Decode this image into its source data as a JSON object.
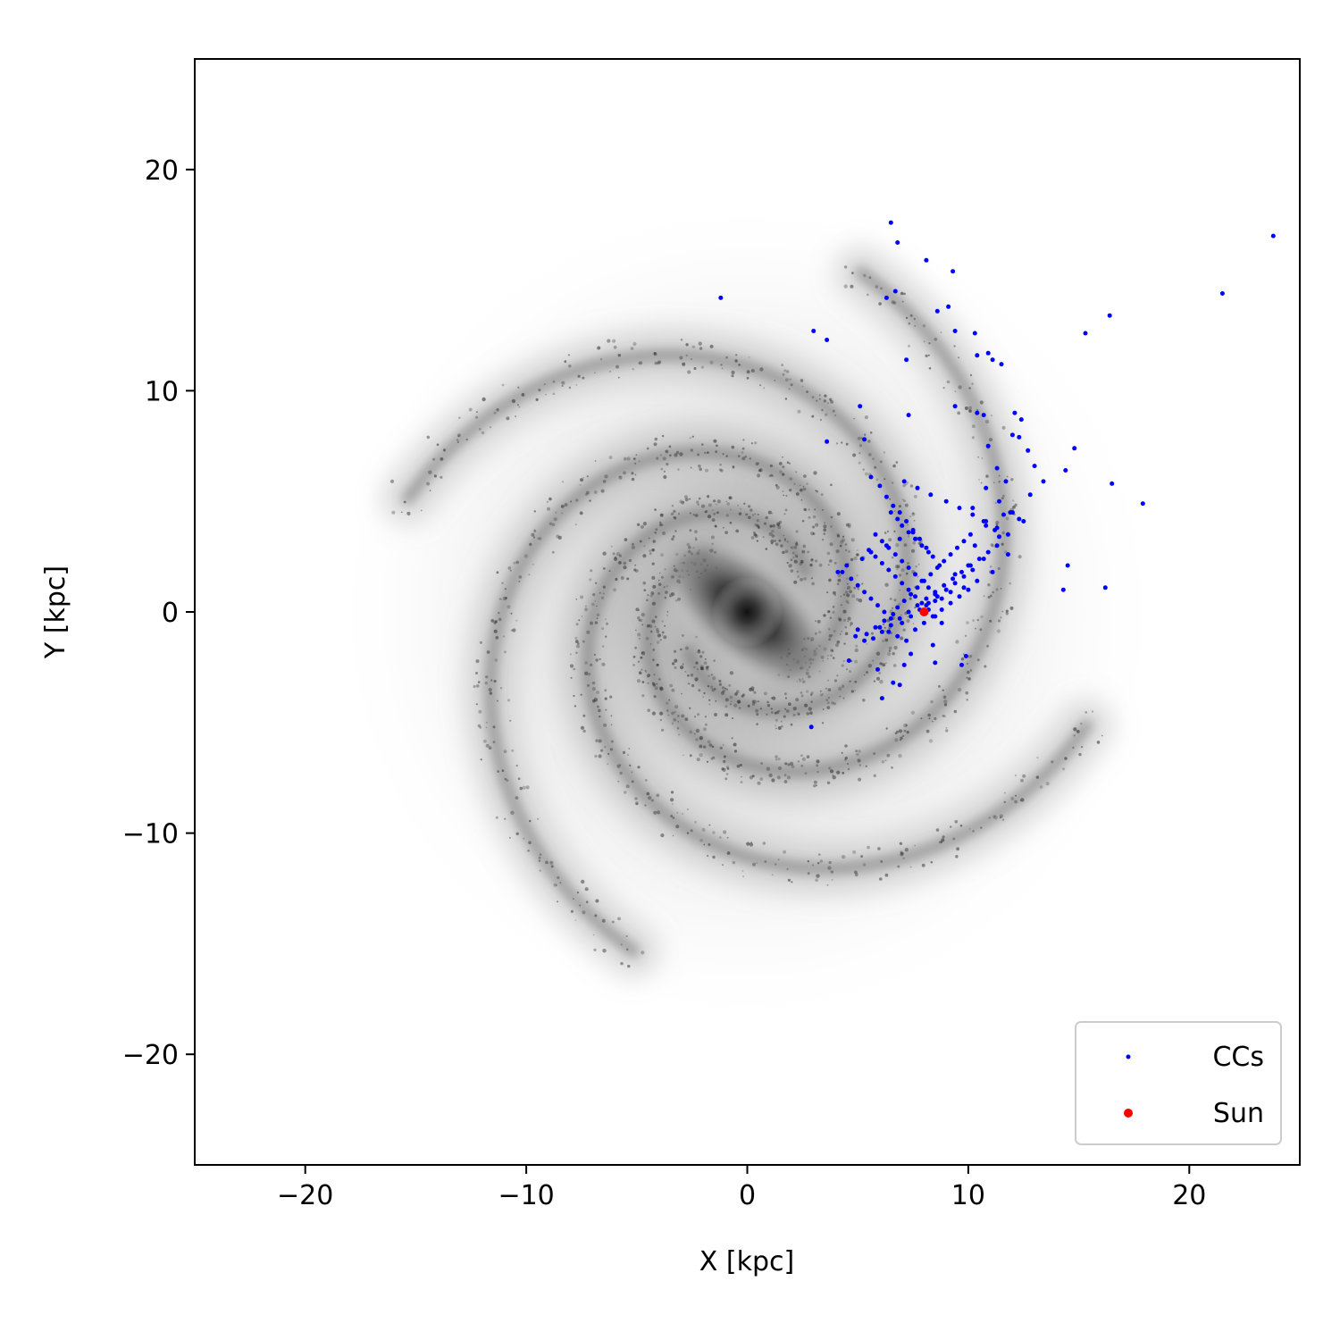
{
  "chart_data": {
    "type": "scatter",
    "title": "",
    "xlabel": "X [kpc]",
    "ylabel": "Y [kpc]",
    "xlim": [
      -25,
      25
    ],
    "ylim": [
      -25,
      25
    ],
    "xticks": [
      -20,
      -10,
      0,
      10,
      20
    ],
    "yticks": [
      -20,
      -10,
      0,
      10,
      20
    ],
    "tick_labels_x": [
      "−20",
      "−10",
      "0",
      "10",
      "20"
    ],
    "tick_labels_y": [
      "−20",
      "−10",
      "0",
      "10",
      "20"
    ],
    "grid": false,
    "legend_position": "bottom-right",
    "background_image": "milky-way-spiral-galaxy-grayscale",
    "series": [
      {
        "name": "CCs",
        "color": "#0000ff",
        "x": [
          23.8,
          21.5,
          16.4,
          15.3,
          14.8,
          14.4,
          16.5,
          17.9,
          16.2,
          14.3,
          14.5,
          6.5,
          6.8,
          8.1,
          9.3,
          6.3,
          6.7,
          8.6,
          9.1,
          9.4,
          10.3,
          10.4,
          10.9,
          11.1,
          11.5,
          7.2,
          7.3,
          9.4,
          10.4,
          10.7,
          12.1,
          12.4,
          12.0,
          12.3,
          12.7,
          13.0,
          13.4,
          12.8,
          10.9,
          11.3,
          11.7,
          10.8,
          11.4,
          10.2,
          10.7,
          11.2,
          12.0,
          11.4,
          11.8,
          10.3,
          10.7,
          11.1,
          10.0,
          10.4,
          9.4,
          9.8,
          8.8,
          9.2,
          8.1,
          8.5,
          3.0,
          3.6,
          5.1,
          3.6,
          5.3,
          5.6,
          6.0,
          6.3,
          6.6,
          6.9,
          7.2,
          7.5,
          7.8,
          8.1,
          8.4,
          8.7,
          6.5,
          6.8,
          7.0,
          7.3,
          7.6,
          7.9,
          8.2,
          5.8,
          6.1,
          6.4,
          6.7,
          7.0,
          7.3,
          7.6,
          7.9,
          8.2,
          8.5,
          5.5,
          5.8,
          6.1,
          6.4,
          6.7,
          7.0,
          7.3,
          7.6,
          7.9,
          8.2,
          8.5,
          8.8,
          4.3,
          4.7,
          5.0,
          5.3,
          5.6,
          5.9,
          6.2,
          6.5,
          6.8,
          7.1,
          7.4,
          7.7,
          8.0,
          8.3,
          8.6,
          8.9,
          9.2,
          9.5,
          9.8,
          10.1,
          5.0,
          5.4,
          5.8,
          6.2,
          6.6,
          7.0,
          7.4,
          7.8,
          8.2,
          8.6,
          9.0,
          9.4,
          9.8,
          10.2,
          4.9,
          5.3,
          5.7,
          6.1,
          6.5,
          6.9,
          7.3,
          7.7,
          8.1,
          8.5,
          8.9,
          9.3,
          9.7,
          10.1,
          10.5,
          10.9,
          11.3,
          6.0,
          6.4,
          6.8,
          7.2,
          7.6,
          8.0,
          8.4,
          8.8,
          9.2,
          9.6,
          10.0,
          4.6,
          5.9,
          6.9,
          6.6,
          7.1,
          8.5,
          9.7,
          2.9,
          6.1,
          7.4,
          8.4,
          9.9,
          10.8,
          11.6,
          12.3,
          11.9,
          12.5,
          4.1,
          4.5,
          5.2,
          5.6,
          6.3,
          6.9,
          7.5,
          7.1,
          7.7,
          8.3,
          9.0,
          9.6,
          10.2,
          10.8,
          11.3,
          11.8,
          -1.2
        ],
        "y": [
          17.0,
          14.4,
          13.4,
          12.6,
          7.4,
          6.4,
          5.8,
          4.9,
          1.1,
          1.0,
          2.1,
          17.6,
          16.7,
          15.9,
          15.4,
          14.2,
          14.5,
          13.6,
          13.8,
          12.7,
          12.6,
          11.6,
          11.7,
          11.4,
          11.2,
          11.4,
          8.9,
          9.3,
          9.0,
          8.9,
          9.0,
          8.7,
          8.0,
          7.9,
          7.3,
          6.6,
          5.9,
          5.3,
          7.5,
          6.5,
          5.9,
          5.6,
          5.0,
          4.7,
          4.1,
          3.7,
          4.5,
          3.4,
          2.6,
          3.0,
          2.4,
          1.8,
          2.1,
          1.4,
          1.7,
          1.1,
          0.6,
          0.9,
          0.3,
          0.5,
          12.7,
          12.3,
          9.3,
          7.7,
          7.8,
          6.1,
          5.7,
          5.2,
          4.8,
          4.5,
          4.1,
          3.7,
          3.3,
          2.9,
          2.5,
          2.1,
          4.5,
          4.2,
          3.9,
          3.6,
          3.3,
          3.0,
          2.7,
          3.5,
          3.2,
          2.9,
          2.6,
          2.3,
          2.0,
          1.7,
          1.4,
          1.1,
          0.8,
          2.8,
          2.5,
          2.2,
          1.9,
          1.6,
          1.3,
          1.0,
          0.7,
          0.4,
          0.1,
          -0.2,
          -0.5,
          1.8,
          1.5,
          1.2,
          0.9,
          0.6,
          0.3,
          0.0,
          -0.3,
          0.2,
          0.5,
          0.8,
          1.1,
          1.4,
          1.7,
          2.0,
          2.3,
          2.6,
          2.9,
          3.2,
          3.5,
          -0.8,
          -1.0,
          -0.7,
          -0.4,
          -0.1,
          -0.5,
          -0.2,
          0.1,
          0.4,
          0.7,
          1.0,
          1.3,
          1.6,
          1.9,
          -1.1,
          -1.3,
          -1.2,
          -0.9,
          -0.6,
          -0.3,
          0.0,
          0.3,
          0.6,
          0.9,
          1.2,
          1.5,
          1.8,
          2.1,
          2.4,
          2.7,
          3.0,
          -0.7,
          -0.9,
          -1.1,
          -1.3,
          -0.8,
          -0.5,
          -0.2,
          0.1,
          0.4,
          0.7,
          1.0,
          -2.2,
          -2.6,
          -3.3,
          -3.2,
          -2.4,
          -2.3,
          -2.4,
          -5.2,
          -3.9,
          -1.9,
          -1.5,
          -2.0,
          3.9,
          4.4,
          4.2,
          4.5,
          4.1,
          1.8,
          2.1,
          2.4,
          2.7,
          3.0,
          3.3,
          3.6,
          5.9,
          5.6,
          5.3,
          5.0,
          4.7,
          4.4,
          4.1,
          3.8,
          3.5,
          14.2
        ]
      },
      {
        "name": "Sun",
        "color": "#ff0000",
        "x": [
          8.0
        ],
        "y": [
          0.0
        ]
      }
    ]
  }
}
